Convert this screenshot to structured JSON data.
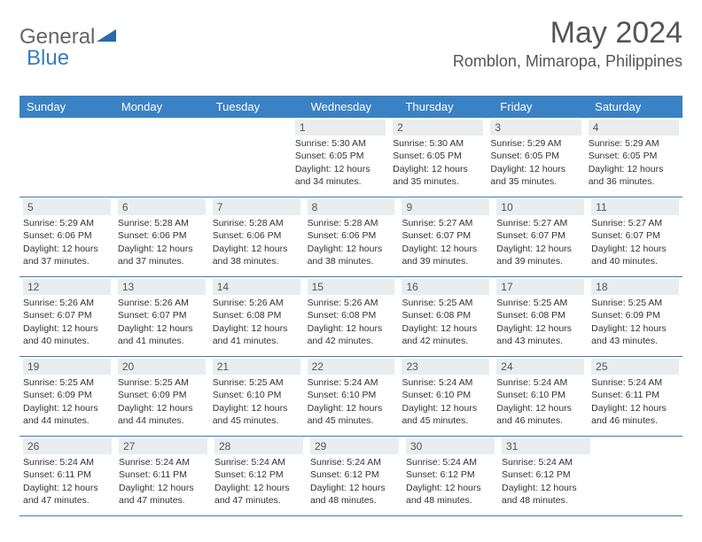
{
  "logo": {
    "general": "General",
    "blue": "Blue"
  },
  "title": "May 2024",
  "location": "Romblon, Mimaropa, Philippines",
  "colors": {
    "header_bg": "#3a82c4",
    "header_text": "#ffffff",
    "daynum_bg": "#e9edf0",
    "border": "#3a7db8",
    "text": "#333333",
    "title_text": "#555555"
  },
  "weekdays": [
    "Sunday",
    "Monday",
    "Tuesday",
    "Wednesday",
    "Thursday",
    "Friday",
    "Saturday"
  ],
  "weeks": [
    [
      null,
      null,
      null,
      {
        "n": "1",
        "sr": "5:30 AM",
        "ss": "6:05 PM",
        "dl": "12 hours and 34 minutes."
      },
      {
        "n": "2",
        "sr": "5:30 AM",
        "ss": "6:05 PM",
        "dl": "12 hours and 35 minutes."
      },
      {
        "n": "3",
        "sr": "5:29 AM",
        "ss": "6:05 PM",
        "dl": "12 hours and 35 minutes."
      },
      {
        "n": "4",
        "sr": "5:29 AM",
        "ss": "6:05 PM",
        "dl": "12 hours and 36 minutes."
      }
    ],
    [
      {
        "n": "5",
        "sr": "5:29 AM",
        "ss": "6:06 PM",
        "dl": "12 hours and 37 minutes."
      },
      {
        "n": "6",
        "sr": "5:28 AM",
        "ss": "6:06 PM",
        "dl": "12 hours and 37 minutes."
      },
      {
        "n": "7",
        "sr": "5:28 AM",
        "ss": "6:06 PM",
        "dl": "12 hours and 38 minutes."
      },
      {
        "n": "8",
        "sr": "5:28 AM",
        "ss": "6:06 PM",
        "dl": "12 hours and 38 minutes."
      },
      {
        "n": "9",
        "sr": "5:27 AM",
        "ss": "6:07 PM",
        "dl": "12 hours and 39 minutes."
      },
      {
        "n": "10",
        "sr": "5:27 AM",
        "ss": "6:07 PM",
        "dl": "12 hours and 39 minutes."
      },
      {
        "n": "11",
        "sr": "5:27 AM",
        "ss": "6:07 PM",
        "dl": "12 hours and 40 minutes."
      }
    ],
    [
      {
        "n": "12",
        "sr": "5:26 AM",
        "ss": "6:07 PM",
        "dl": "12 hours and 40 minutes."
      },
      {
        "n": "13",
        "sr": "5:26 AM",
        "ss": "6:07 PM",
        "dl": "12 hours and 41 minutes."
      },
      {
        "n": "14",
        "sr": "5:26 AM",
        "ss": "6:08 PM",
        "dl": "12 hours and 41 minutes."
      },
      {
        "n": "15",
        "sr": "5:26 AM",
        "ss": "6:08 PM",
        "dl": "12 hours and 42 minutes."
      },
      {
        "n": "16",
        "sr": "5:25 AM",
        "ss": "6:08 PM",
        "dl": "12 hours and 42 minutes."
      },
      {
        "n": "17",
        "sr": "5:25 AM",
        "ss": "6:08 PM",
        "dl": "12 hours and 43 minutes."
      },
      {
        "n": "18",
        "sr": "5:25 AM",
        "ss": "6:09 PM",
        "dl": "12 hours and 43 minutes."
      }
    ],
    [
      {
        "n": "19",
        "sr": "5:25 AM",
        "ss": "6:09 PM",
        "dl": "12 hours and 44 minutes."
      },
      {
        "n": "20",
        "sr": "5:25 AM",
        "ss": "6:09 PM",
        "dl": "12 hours and 44 minutes."
      },
      {
        "n": "21",
        "sr": "5:25 AM",
        "ss": "6:10 PM",
        "dl": "12 hours and 45 minutes."
      },
      {
        "n": "22",
        "sr": "5:24 AM",
        "ss": "6:10 PM",
        "dl": "12 hours and 45 minutes."
      },
      {
        "n": "23",
        "sr": "5:24 AM",
        "ss": "6:10 PM",
        "dl": "12 hours and 45 minutes."
      },
      {
        "n": "24",
        "sr": "5:24 AM",
        "ss": "6:10 PM",
        "dl": "12 hours and 46 minutes."
      },
      {
        "n": "25",
        "sr": "5:24 AM",
        "ss": "6:11 PM",
        "dl": "12 hours and 46 minutes."
      }
    ],
    [
      {
        "n": "26",
        "sr": "5:24 AM",
        "ss": "6:11 PM",
        "dl": "12 hours and 47 minutes."
      },
      {
        "n": "27",
        "sr": "5:24 AM",
        "ss": "6:11 PM",
        "dl": "12 hours and 47 minutes."
      },
      {
        "n": "28",
        "sr": "5:24 AM",
        "ss": "6:12 PM",
        "dl": "12 hours and 47 minutes."
      },
      {
        "n": "29",
        "sr": "5:24 AM",
        "ss": "6:12 PM",
        "dl": "12 hours and 48 minutes."
      },
      {
        "n": "30",
        "sr": "5:24 AM",
        "ss": "6:12 PM",
        "dl": "12 hours and 48 minutes."
      },
      {
        "n": "31",
        "sr": "5:24 AM",
        "ss": "6:12 PM",
        "dl": "12 hours and 48 minutes."
      },
      null
    ]
  ],
  "labels": {
    "sunrise": "Sunrise:",
    "sunset": "Sunset:",
    "daylight": "Daylight:"
  }
}
